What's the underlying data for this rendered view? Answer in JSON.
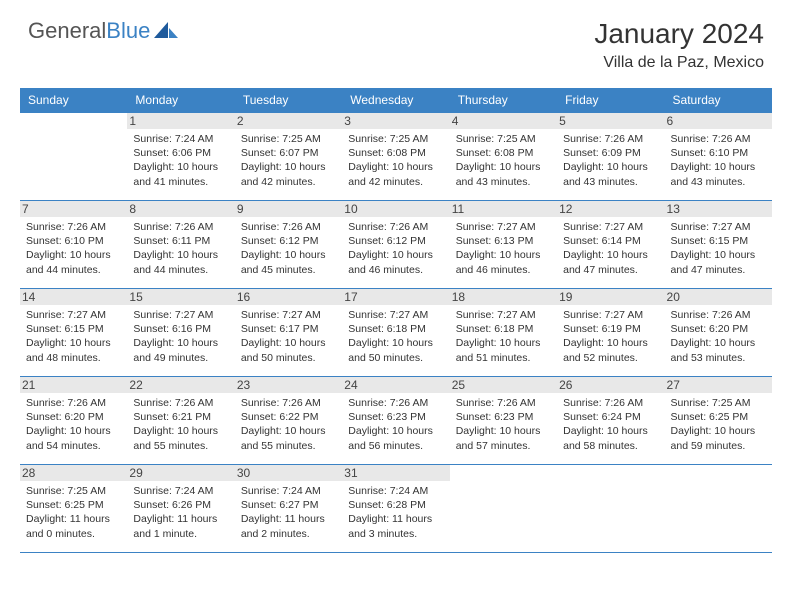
{
  "brand": {
    "name_part1": "General",
    "name_part2": "Blue"
  },
  "title": "January 2024",
  "location": "Villa de la Paz, Mexico",
  "colors": {
    "accent": "#3b82c4",
    "daybar": "#e8e8e8",
    "text": "#333333",
    "background": "#ffffff"
  },
  "weekdays": [
    "Sunday",
    "Monday",
    "Tuesday",
    "Wednesday",
    "Thursday",
    "Friday",
    "Saturday"
  ],
  "weeks": [
    [
      {
        "day": "",
        "sunrise": "",
        "sunset": "",
        "daylight": ""
      },
      {
        "day": "1",
        "sunrise": "Sunrise: 7:24 AM",
        "sunset": "Sunset: 6:06 PM",
        "daylight": "Daylight: 10 hours and 41 minutes."
      },
      {
        "day": "2",
        "sunrise": "Sunrise: 7:25 AM",
        "sunset": "Sunset: 6:07 PM",
        "daylight": "Daylight: 10 hours and 42 minutes."
      },
      {
        "day": "3",
        "sunrise": "Sunrise: 7:25 AM",
        "sunset": "Sunset: 6:08 PM",
        "daylight": "Daylight: 10 hours and 42 minutes."
      },
      {
        "day": "4",
        "sunrise": "Sunrise: 7:25 AM",
        "sunset": "Sunset: 6:08 PM",
        "daylight": "Daylight: 10 hours and 43 minutes."
      },
      {
        "day": "5",
        "sunrise": "Sunrise: 7:26 AM",
        "sunset": "Sunset: 6:09 PM",
        "daylight": "Daylight: 10 hours and 43 minutes."
      },
      {
        "day": "6",
        "sunrise": "Sunrise: 7:26 AM",
        "sunset": "Sunset: 6:10 PM",
        "daylight": "Daylight: 10 hours and 43 minutes."
      }
    ],
    [
      {
        "day": "7",
        "sunrise": "Sunrise: 7:26 AM",
        "sunset": "Sunset: 6:10 PM",
        "daylight": "Daylight: 10 hours and 44 minutes."
      },
      {
        "day": "8",
        "sunrise": "Sunrise: 7:26 AM",
        "sunset": "Sunset: 6:11 PM",
        "daylight": "Daylight: 10 hours and 44 minutes."
      },
      {
        "day": "9",
        "sunrise": "Sunrise: 7:26 AM",
        "sunset": "Sunset: 6:12 PM",
        "daylight": "Daylight: 10 hours and 45 minutes."
      },
      {
        "day": "10",
        "sunrise": "Sunrise: 7:26 AM",
        "sunset": "Sunset: 6:12 PM",
        "daylight": "Daylight: 10 hours and 46 minutes."
      },
      {
        "day": "11",
        "sunrise": "Sunrise: 7:27 AM",
        "sunset": "Sunset: 6:13 PM",
        "daylight": "Daylight: 10 hours and 46 minutes."
      },
      {
        "day": "12",
        "sunrise": "Sunrise: 7:27 AM",
        "sunset": "Sunset: 6:14 PM",
        "daylight": "Daylight: 10 hours and 47 minutes."
      },
      {
        "day": "13",
        "sunrise": "Sunrise: 7:27 AM",
        "sunset": "Sunset: 6:15 PM",
        "daylight": "Daylight: 10 hours and 47 minutes."
      }
    ],
    [
      {
        "day": "14",
        "sunrise": "Sunrise: 7:27 AM",
        "sunset": "Sunset: 6:15 PM",
        "daylight": "Daylight: 10 hours and 48 minutes."
      },
      {
        "day": "15",
        "sunrise": "Sunrise: 7:27 AM",
        "sunset": "Sunset: 6:16 PM",
        "daylight": "Daylight: 10 hours and 49 minutes."
      },
      {
        "day": "16",
        "sunrise": "Sunrise: 7:27 AM",
        "sunset": "Sunset: 6:17 PM",
        "daylight": "Daylight: 10 hours and 50 minutes."
      },
      {
        "day": "17",
        "sunrise": "Sunrise: 7:27 AM",
        "sunset": "Sunset: 6:18 PM",
        "daylight": "Daylight: 10 hours and 50 minutes."
      },
      {
        "day": "18",
        "sunrise": "Sunrise: 7:27 AM",
        "sunset": "Sunset: 6:18 PM",
        "daylight": "Daylight: 10 hours and 51 minutes."
      },
      {
        "day": "19",
        "sunrise": "Sunrise: 7:27 AM",
        "sunset": "Sunset: 6:19 PM",
        "daylight": "Daylight: 10 hours and 52 minutes."
      },
      {
        "day": "20",
        "sunrise": "Sunrise: 7:26 AM",
        "sunset": "Sunset: 6:20 PM",
        "daylight": "Daylight: 10 hours and 53 minutes."
      }
    ],
    [
      {
        "day": "21",
        "sunrise": "Sunrise: 7:26 AM",
        "sunset": "Sunset: 6:20 PM",
        "daylight": "Daylight: 10 hours and 54 minutes."
      },
      {
        "day": "22",
        "sunrise": "Sunrise: 7:26 AM",
        "sunset": "Sunset: 6:21 PM",
        "daylight": "Daylight: 10 hours and 55 minutes."
      },
      {
        "day": "23",
        "sunrise": "Sunrise: 7:26 AM",
        "sunset": "Sunset: 6:22 PM",
        "daylight": "Daylight: 10 hours and 55 minutes."
      },
      {
        "day": "24",
        "sunrise": "Sunrise: 7:26 AM",
        "sunset": "Sunset: 6:23 PM",
        "daylight": "Daylight: 10 hours and 56 minutes."
      },
      {
        "day": "25",
        "sunrise": "Sunrise: 7:26 AM",
        "sunset": "Sunset: 6:23 PM",
        "daylight": "Daylight: 10 hours and 57 minutes."
      },
      {
        "day": "26",
        "sunrise": "Sunrise: 7:26 AM",
        "sunset": "Sunset: 6:24 PM",
        "daylight": "Daylight: 10 hours and 58 minutes."
      },
      {
        "day": "27",
        "sunrise": "Sunrise: 7:25 AM",
        "sunset": "Sunset: 6:25 PM",
        "daylight": "Daylight: 10 hours and 59 minutes."
      }
    ],
    [
      {
        "day": "28",
        "sunrise": "Sunrise: 7:25 AM",
        "sunset": "Sunset: 6:25 PM",
        "daylight": "Daylight: 11 hours and 0 minutes."
      },
      {
        "day": "29",
        "sunrise": "Sunrise: 7:24 AM",
        "sunset": "Sunset: 6:26 PM",
        "daylight": "Daylight: 11 hours and 1 minute."
      },
      {
        "day": "30",
        "sunrise": "Sunrise: 7:24 AM",
        "sunset": "Sunset: 6:27 PM",
        "daylight": "Daylight: 11 hours and 2 minutes."
      },
      {
        "day": "31",
        "sunrise": "Sunrise: 7:24 AM",
        "sunset": "Sunset: 6:28 PM",
        "daylight": "Daylight: 11 hours and 3 minutes."
      },
      {
        "day": "",
        "sunrise": "",
        "sunset": "",
        "daylight": ""
      },
      {
        "day": "",
        "sunrise": "",
        "sunset": "",
        "daylight": ""
      },
      {
        "day": "",
        "sunrise": "",
        "sunset": "",
        "daylight": ""
      }
    ]
  ]
}
